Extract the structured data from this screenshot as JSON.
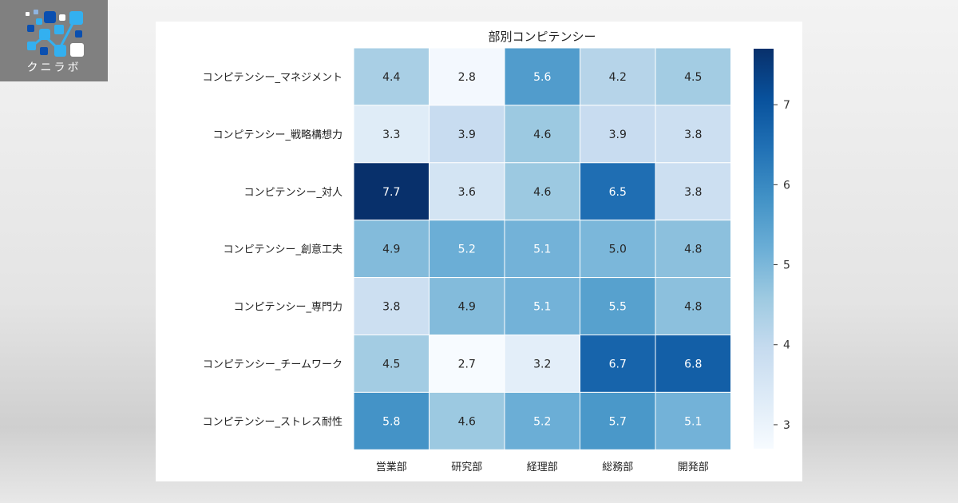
{
  "logo": {
    "text": "クニラボ"
  },
  "chart_data": {
    "type": "heatmap",
    "title": "部別コンピテンシー",
    "xlabel": "",
    "ylabel": "",
    "x_categories": [
      "営業部",
      "研究部",
      "経理部",
      "総務部",
      "開発部"
    ],
    "y_categories": [
      "コンピテンシー_マネジメント",
      "コンピテンシー_戦略構想力",
      "コンピテンシー_対人",
      "コンピテンシー_創意工夫",
      "コンピテンシー_専門力",
      "コンピテンシー_チームワーク",
      "コンピテンシー_ストレス耐性"
    ],
    "values": [
      [
        4.4,
        2.8,
        5.6,
        4.2,
        4.5
      ],
      [
        3.3,
        3.9,
        4.6,
        3.9,
        3.8
      ],
      [
        7.7,
        3.6,
        4.6,
        6.5,
        3.8
      ],
      [
        4.9,
        5.2,
        5.1,
        5.0,
        4.8
      ],
      [
        3.8,
        4.9,
        5.1,
        5.5,
        4.8
      ],
      [
        4.5,
        2.7,
        3.2,
        6.7,
        6.8
      ],
      [
        5.8,
        4.6,
        5.2,
        5.7,
        5.1
      ]
    ],
    "colormap": "Blues",
    "colorbar": {
      "range": [
        2.7,
        7.7
      ],
      "ticks": [
        "3",
        "4",
        "5",
        "6",
        "7"
      ]
    },
    "annotated": true
  }
}
